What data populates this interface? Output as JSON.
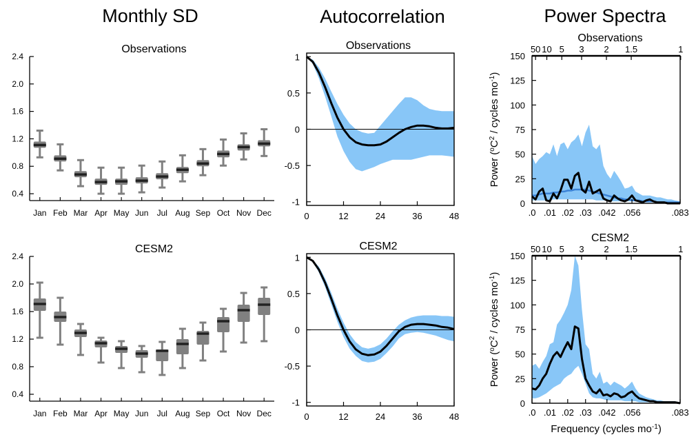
{
  "figure": {
    "column_titles": [
      "Monthly SD",
      "Autocorrelation",
      "Power Spectra"
    ]
  },
  "colors": {
    "box_fill": "#808080",
    "median": "#222222",
    "band": "#88c6f7",
    "line": "#000000",
    "spectrum_mean": "#3b82d6"
  },
  "chart_data": [
    {
      "id": "sd_obs",
      "type": "box",
      "title": "Observations",
      "categories": [
        "Jan",
        "Feb",
        "Mar",
        "Apr",
        "May",
        "Jun",
        "Jul",
        "Aug",
        "Sep",
        "Oct",
        "Nov",
        "Dec"
      ],
      "ylim": [
        0.3,
        2.4
      ],
      "yticks": [
        0.4,
        0.8,
        1.2,
        1.6,
        2.0,
        2.4
      ],
      "ytick_labels": [
        "0.4",
        "0.8",
        "1.2",
        "1.6",
        "2.0",
        "2.4"
      ],
      "boxes": [
        {
          "low": 0.93,
          "q1": 1.07,
          "median": 1.11,
          "q3": 1.16,
          "high": 1.32
        },
        {
          "low": 0.74,
          "q1": 0.87,
          "median": 0.91,
          "q3": 0.96,
          "high": 1.12
        },
        {
          "low": 0.51,
          "q1": 0.64,
          "median": 0.68,
          "q3": 0.73,
          "high": 0.89
        },
        {
          "low": 0.4,
          "q1": 0.53,
          "median": 0.57,
          "q3": 0.62,
          "high": 0.78
        },
        {
          "low": 0.4,
          "q1": 0.53,
          "median": 0.58,
          "q3": 0.62,
          "high": 0.78
        },
        {
          "low": 0.42,
          "q1": 0.55,
          "median": 0.59,
          "q3": 0.64,
          "high": 0.81
        },
        {
          "low": 0.49,
          "q1": 0.61,
          "median": 0.65,
          "q3": 0.7,
          "high": 0.87
        },
        {
          "low": 0.58,
          "q1": 0.7,
          "median": 0.75,
          "q3": 0.79,
          "high": 0.96
        },
        {
          "low": 0.67,
          "q1": 0.8,
          "median": 0.84,
          "q3": 0.89,
          "high": 1.05
        },
        {
          "low": 0.81,
          "q1": 0.93,
          "median": 0.98,
          "q3": 1.03,
          "high": 1.19
        },
        {
          "low": 0.9,
          "q1": 1.03,
          "median": 1.08,
          "q3": 1.12,
          "high": 1.28
        },
        {
          "low": 0.95,
          "q1": 1.09,
          "median": 1.13,
          "q3": 1.18,
          "high": 1.34
        }
      ]
    },
    {
      "id": "sd_cesm",
      "type": "box",
      "title": "CESM2",
      "categories": [
        "Jan",
        "Feb",
        "Mar",
        "Apr",
        "May",
        "Jun",
        "Jul",
        "Aug",
        "Sep",
        "Oct",
        "Nov",
        "Dec"
      ],
      "ylim": [
        0.3,
        2.4
      ],
      "yticks": [
        0.4,
        0.8,
        1.2,
        1.6,
        2.0,
        2.4
      ],
      "ytick_labels": [
        "0.4",
        "0.8",
        "1.2",
        "1.6",
        "2.0",
        "2.4"
      ],
      "boxes": [
        {
          "low": 1.22,
          "q1": 1.61,
          "median": 1.71,
          "q3": 1.79,
          "high": 2.02
        },
        {
          "low": 1.12,
          "q1": 1.45,
          "median": 1.52,
          "q3": 1.6,
          "high": 1.8
        },
        {
          "low": 0.97,
          "q1": 1.23,
          "median": 1.29,
          "q3": 1.34,
          "high": 1.42
        },
        {
          "low": 0.86,
          "q1": 1.08,
          "median": 1.14,
          "q3": 1.18,
          "high": 1.22
        },
        {
          "low": 0.78,
          "q1": 1.0,
          "median": 1.06,
          "q3": 1.1,
          "high": 1.17
        },
        {
          "low": 0.72,
          "q1": 0.93,
          "median": 0.99,
          "q3": 1.04,
          "high": 1.1
        },
        {
          "low": 0.68,
          "q1": 0.88,
          "median": 1.03,
          "q3": 1.05,
          "high": 1.16
        },
        {
          "low": 0.78,
          "q1": 0.98,
          "median": 1.13,
          "q3": 1.2,
          "high": 1.35
        },
        {
          "low": 0.89,
          "q1": 1.12,
          "median": 1.28,
          "q3": 1.32,
          "high": 1.44
        },
        {
          "low": 1.02,
          "q1": 1.3,
          "median": 1.46,
          "q3": 1.52,
          "high": 1.64
        },
        {
          "low": 1.15,
          "q1": 1.45,
          "median": 1.62,
          "q3": 1.7,
          "high": 1.87
        },
        {
          "low": 1.17,
          "q1": 1.55,
          "median": 1.7,
          "q3": 1.8,
          "high": 1.95
        }
      ]
    },
    {
      "id": "ac_obs",
      "type": "line",
      "title": "Observations",
      "xlim": [
        0,
        48
      ],
      "ylim": [
        -1.05,
        1.05
      ],
      "xticks": [
        0,
        12,
        24,
        36,
        48
      ],
      "xtick_labels": [
        "0",
        "12",
        "24",
        "36",
        "48"
      ],
      "yticks": [
        1,
        0.5,
        0,
        -0.5,
        -1
      ],
      "ytick_labels": [
        "1",
        "0.5",
        "0",
        "-0.5",
        "-1"
      ],
      "zero_line": true,
      "x": [
        0,
        2,
        4,
        6,
        8,
        10,
        12,
        14,
        16,
        18,
        20,
        22,
        24,
        26,
        28,
        30,
        32,
        34,
        36,
        38,
        40,
        42,
        44,
        46,
        48
      ],
      "y": [
        1.0,
        0.93,
        0.78,
        0.58,
        0.36,
        0.16,
        0.0,
        -0.11,
        -0.18,
        -0.21,
        -0.22,
        -0.22,
        -0.21,
        -0.17,
        -0.11,
        -0.05,
        0.0,
        0.03,
        0.05,
        0.05,
        0.04,
        0.02,
        0.01,
        0.01,
        0.02
      ],
      "y_upper": [
        1.0,
        0.96,
        0.85,
        0.7,
        0.52,
        0.35,
        0.2,
        0.08,
        0.0,
        -0.04,
        -0.06,
        -0.05,
        0.05,
        0.15,
        0.25,
        0.35,
        0.44,
        0.44,
        0.4,
        0.33,
        0.28,
        0.26,
        0.25,
        0.25,
        0.25
      ],
      "y_lower": [
        1.0,
        0.9,
        0.7,
        0.45,
        0.18,
        -0.1,
        -0.3,
        -0.45,
        -0.55,
        -0.58,
        -0.55,
        -0.52,
        -0.48,
        -0.45,
        -0.42,
        -0.42,
        -0.42,
        -0.42,
        -0.4,
        -0.38,
        -0.36,
        -0.36,
        -0.36,
        -0.37,
        -0.38
      ]
    },
    {
      "id": "ac_cesm",
      "type": "line",
      "title": "CESM2",
      "xlim": [
        0,
        48
      ],
      "ylim": [
        -1.05,
        1.05
      ],
      "xticks": [
        0,
        12,
        24,
        36,
        48
      ],
      "xtick_labels": [
        "0",
        "12",
        "24",
        "36",
        "48"
      ],
      "yticks": [
        1,
        0.5,
        0,
        -0.5,
        -1
      ],
      "ytick_labels": [
        "1",
        "0.5",
        "0",
        "-0.5",
        "-1"
      ],
      "zero_line": true,
      "x": [
        0,
        2,
        4,
        6,
        8,
        10,
        12,
        14,
        16,
        18,
        20,
        22,
        24,
        26,
        28,
        30,
        32,
        34,
        36,
        38,
        40,
        42,
        44,
        46,
        48
      ],
      "y": [
        1.0,
        0.95,
        0.83,
        0.65,
        0.43,
        0.2,
        0.0,
        -0.16,
        -0.27,
        -0.33,
        -0.35,
        -0.34,
        -0.3,
        -0.22,
        -0.12,
        -0.02,
        0.04,
        0.07,
        0.08,
        0.08,
        0.07,
        0.06,
        0.04,
        0.03,
        0.01
      ],
      "y_upper": [
        1.0,
        0.96,
        0.87,
        0.71,
        0.51,
        0.29,
        0.1,
        -0.06,
        -0.17,
        -0.24,
        -0.26,
        -0.24,
        -0.2,
        -0.12,
        -0.02,
        0.07,
        0.13,
        0.17,
        0.19,
        0.2,
        0.2,
        0.2,
        0.19,
        0.19,
        0.18
      ],
      "y_lower": [
        1.0,
        0.94,
        0.79,
        0.59,
        0.35,
        0.11,
        -0.1,
        -0.26,
        -0.36,
        -0.43,
        -0.45,
        -0.44,
        -0.4,
        -0.32,
        -0.23,
        -0.12,
        -0.06,
        -0.04,
        -0.03,
        -0.04,
        -0.06,
        -0.08,
        -0.11,
        -0.14,
        -0.16
      ]
    },
    {
      "id": "ps_obs",
      "type": "area",
      "title": "Observations",
      "ylabel_main": "Power (",
      "ylabel_sup": "o",
      "ylabel_mid": "C",
      "ylabel_sup2": "2",
      "ylabel_tail": " / cycles mo",
      "ylabel_sup3": "-1",
      "ylabel_end": ")",
      "xlim": [
        0,
        0.083
      ],
      "ylim": [
        0,
        150
      ],
      "xticks": [
        0.0,
        0.01,
        0.02,
        0.03,
        0.042,
        0.056,
        0.083
      ],
      "xtick_labels": [
        ".0",
        ".01",
        ".02",
        ".03",
        ".042",
        ".056",
        ".083"
      ],
      "yticks": [
        0,
        25,
        50,
        75,
        100,
        125,
        150
      ],
      "ytick_labels": [
        "0",
        "25",
        "50",
        "75",
        "100",
        "125",
        "150"
      ],
      "top_ticks": [
        0.002,
        0.0083,
        0.0167,
        0.0278,
        0.0417,
        0.0556,
        0.0833
      ],
      "top_tick_labels": [
        "50",
        "10",
        "5",
        "3",
        "2",
        "1.5",
        "1"
      ],
      "x": [
        0.0,
        0.002,
        0.004,
        0.006,
        0.008,
        0.01,
        0.012,
        0.014,
        0.016,
        0.018,
        0.02,
        0.022,
        0.024,
        0.026,
        0.028,
        0.03,
        0.032,
        0.034,
        0.036,
        0.038,
        0.04,
        0.042,
        0.044,
        0.046,
        0.048,
        0.05,
        0.052,
        0.054,
        0.056,
        0.058,
        0.06,
        0.062,
        0.064,
        0.066,
        0.068,
        0.07,
        0.072,
        0.074,
        0.076,
        0.078,
        0.08,
        0.083
      ],
      "y": [
        7,
        4,
        12,
        15,
        3,
        2,
        10,
        5,
        13,
        24,
        24,
        15,
        28,
        31,
        14,
        11,
        22,
        10,
        12,
        14,
        5,
        3,
        2,
        8,
        5,
        3,
        2,
        4,
        8,
        3,
        2,
        1,
        3,
        4,
        2,
        1,
        1,
        1,
        0,
        0,
        0,
        0
      ],
      "y_upper": [
        48,
        40,
        45,
        48,
        52,
        50,
        60,
        48,
        60,
        62,
        55,
        62,
        65,
        70,
        58,
        72,
        80,
        58,
        55,
        60,
        38,
        30,
        25,
        33,
        28,
        22,
        15,
        16,
        18,
        12,
        10,
        8,
        8,
        8,
        7,
        6,
        6,
        5,
        4,
        4,
        3,
        2
      ],
      "y_lower": [
        3,
        3,
        3,
        3,
        3,
        3,
        4,
        4,
        4,
        4,
        4,
        4,
        4,
        4,
        4,
        4,
        4,
        4,
        3,
        3,
        3,
        3,
        2,
        2,
        2,
        2,
        2,
        2,
        2,
        2,
        1,
        1,
        1,
        1,
        1,
        1,
        1,
        1,
        0,
        0,
        0,
        0
      ],
      "mean": [
        8,
        8,
        9,
        10,
        10,
        10,
        11,
        11,
        12,
        12,
        13,
        13,
        14,
        14,
        14,
        14,
        13,
        12,
        11,
        10,
        9,
        8,
        7,
        6,
        5,
        5,
        4,
        4,
        3,
        3,
        3,
        2,
        2,
        2,
        2,
        1,
        1,
        1,
        1,
        1,
        1,
        1
      ]
    },
    {
      "id": "ps_cesm",
      "type": "area",
      "title": "CESM2",
      "xlabel_main": "Frequency (cycles mo",
      "xlabel_sup": "-1",
      "xlabel_end": ")",
      "ylabel_main": "Power (",
      "ylabel_sup": "o",
      "ylabel_mid": "C",
      "ylabel_sup2": "2",
      "ylabel_tail": " / cycles mo",
      "ylabel_sup3": "-1",
      "ylabel_end": ")",
      "xlim": [
        0,
        0.083
      ],
      "ylim": [
        0,
        150
      ],
      "xticks": [
        0.0,
        0.01,
        0.02,
        0.03,
        0.042,
        0.056,
        0.083
      ],
      "xtick_labels": [
        ".0",
        ".01",
        ".02",
        ".03",
        ".042",
        ".056",
        ".083"
      ],
      "yticks": [
        0,
        25,
        50,
        75,
        100,
        125,
        150
      ],
      "ytick_labels": [
        "0",
        "25",
        "50",
        "75",
        "100",
        "125",
        "150"
      ],
      "top_ticks": [
        0.002,
        0.0083,
        0.0167,
        0.0278,
        0.0417,
        0.0556,
        0.0833
      ],
      "top_tick_labels": [
        "50",
        "10",
        "5",
        "3",
        "2",
        "1.5",
        "1"
      ],
      "x": [
        0.0,
        0.002,
        0.004,
        0.006,
        0.008,
        0.01,
        0.012,
        0.014,
        0.016,
        0.018,
        0.02,
        0.022,
        0.024,
        0.026,
        0.028,
        0.03,
        0.032,
        0.034,
        0.036,
        0.038,
        0.04,
        0.042,
        0.044,
        0.046,
        0.048,
        0.05,
        0.052,
        0.054,
        0.056,
        0.058,
        0.06,
        0.062,
        0.064,
        0.066,
        0.068,
        0.07,
        0.072,
        0.074,
        0.076,
        0.078,
        0.08,
        0.083
      ],
      "y": [
        15,
        14,
        18,
        25,
        30,
        40,
        48,
        52,
        47,
        55,
        62,
        55,
        78,
        76,
        45,
        25,
        18,
        12,
        10,
        14,
        8,
        9,
        7,
        10,
        9,
        6,
        7,
        10,
        12,
        8,
        5,
        4,
        3,
        2,
        2,
        1,
        1,
        1,
        1,
        1,
        1,
        0
      ],
      "y_upper": [
        38,
        40,
        35,
        42,
        48,
        60,
        62,
        80,
        85,
        92,
        100,
        115,
        150,
        140,
        95,
        60,
        55,
        30,
        25,
        32,
        20,
        22,
        18,
        22,
        20,
        18,
        15,
        18,
        22,
        15,
        10,
        8,
        6,
        5,
        4,
        3,
        3,
        2,
        2,
        2,
        2,
        1
      ],
      "y_lower": [
        5,
        5,
        6,
        8,
        10,
        13,
        16,
        18,
        20,
        25,
        28,
        30,
        35,
        38,
        30,
        20,
        10,
        6,
        5,
        5,
        4,
        3,
        3,
        3,
        3,
        3,
        2,
        2,
        2,
        2,
        1,
        1,
        1,
        1,
        1,
        1,
        1,
        1,
        1,
        1,
        1,
        0
      ]
    }
  ]
}
